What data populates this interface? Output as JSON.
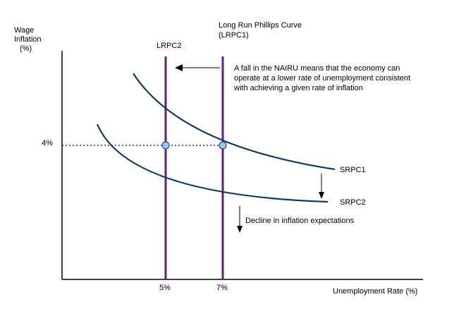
{
  "colors": {
    "axis": "#000000",
    "srpc": "#0d3b66",
    "lrpc": "#6a1b7a",
    "dotted": "#1a2fb0",
    "point_fill": "#9ec9ee",
    "point_stroke": "#1f4e8c",
    "arrow": "#000000"
  },
  "chart_data": {
    "type": "line",
    "title": "",
    "xlabel": "Unemployment Rate (%)",
    "ylabel": "Wage Inflation (%)",
    "ylabel_lines": [
      "Wage",
      "Inflation",
      "(%)"
    ],
    "x_ticks": [
      "5%",
      "7%"
    ],
    "y_ticks": [
      "4%"
    ],
    "vertical_lines": [
      {
        "id": "lrpc2",
        "x_label": "5%",
        "label": "LRPC2"
      },
      {
        "id": "lrpc1",
        "x_label": "7%",
        "label_lines": [
          "Long Run Phillips Curve",
          "(LRPC1)"
        ]
      }
    ],
    "curves": [
      {
        "id": "srpc1",
        "label": "SRPC1"
      },
      {
        "id": "srpc2",
        "label": "SRPC2"
      }
    ],
    "intersections": [
      {
        "x_label": "5%",
        "y_label": "4%",
        "curve": "srpc1"
      },
      {
        "x_label": "7%",
        "y_label": "4%",
        "curve": "srpc1"
      }
    ],
    "annotations": [
      {
        "id": "nairu-note",
        "lines": [
          "A fall in the NAIRU means that the economy can",
          "operate at a lower rate of unemployment consistent",
          "with achieving a given rate of inflation"
        ]
      },
      {
        "id": "expectations-note",
        "text": "Decline in inflation expectations"
      }
    ]
  }
}
